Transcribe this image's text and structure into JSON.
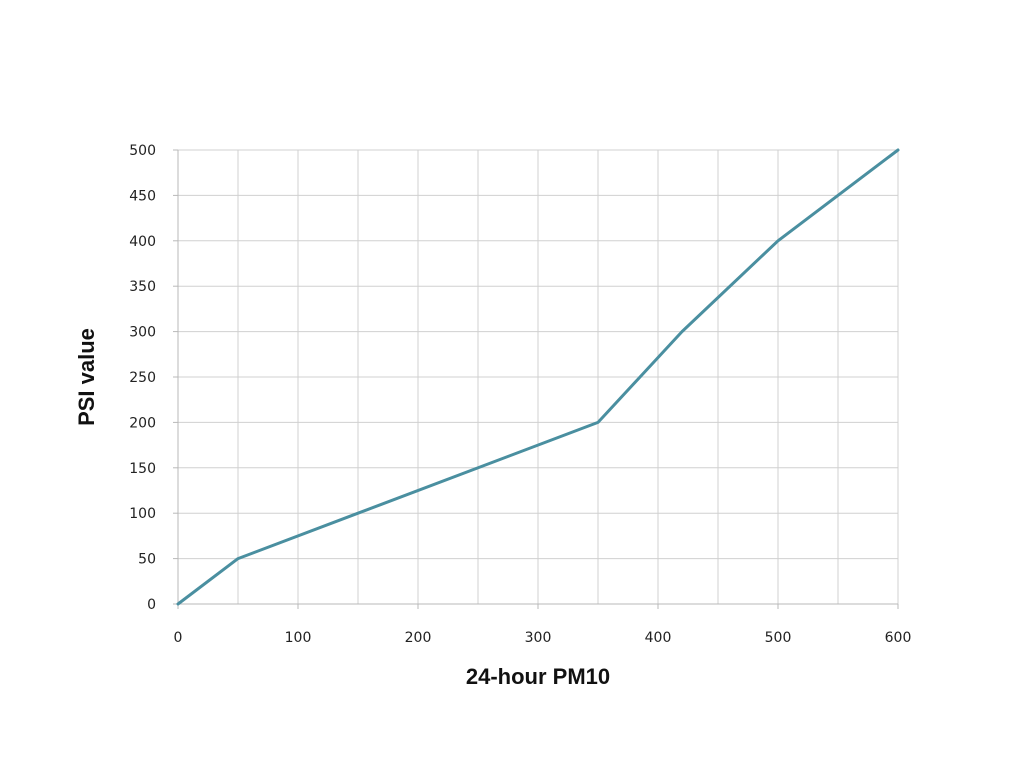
{
  "chart_data": {
    "type": "line",
    "title": "",
    "xlabel": "24-hour PM10",
    "ylabel": "PSI value",
    "xlim": [
      0,
      600
    ],
    "ylim": [
      0,
      500
    ],
    "x_ticks": [
      0,
      100,
      200,
      300,
      400,
      500,
      600
    ],
    "x_minor_grid_step": 50,
    "y_ticks": [
      0,
      50,
      100,
      150,
      200,
      250,
      300,
      350,
      400,
      450,
      500
    ],
    "grid": true,
    "legend": "none",
    "series": [
      {
        "color": "#4a8fa0",
        "x": [
          0,
          50,
          150,
          350,
          420,
          500,
          600
        ],
        "y": [
          0,
          50,
          100,
          200,
          300,
          400,
          500
        ]
      }
    ]
  }
}
